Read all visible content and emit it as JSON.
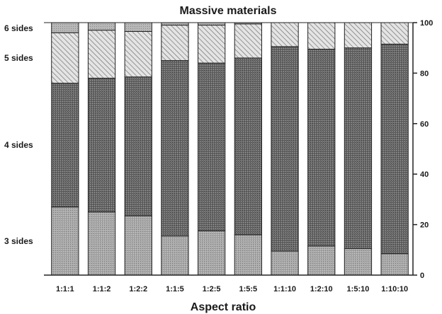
{
  "chart_data": {
    "type": "bar",
    "stacked": true,
    "title": "Massive materials",
    "xlabel": "Aspect ratio",
    "ylabel": "",
    "ylim": [
      0,
      100
    ],
    "yticks": [
      0,
      20,
      40,
      60,
      80,
      100
    ],
    "y_axis_side": "right",
    "categories": [
      "1:1:1",
      "1:1:2",
      "1:2:2",
      "1:1:5",
      "1:2:5",
      "1:5:5",
      "1:1:10",
      "1:2:10",
      "1:5:10",
      "1:10:10"
    ],
    "series": [
      {
        "name": "3 sides",
        "values": [
          27,
          25,
          23.5,
          15.5,
          17.5,
          16,
          9.5,
          11.5,
          10.5,
          8.5
        ]
      },
      {
        "name": "4 sides",
        "values": [
          49,
          53,
          55,
          69.5,
          66.5,
          70,
          81,
          78,
          79.5,
          83
        ]
      },
      {
        "name": "5 sides",
        "values": [
          20,
          19,
          18,
          14,
          15,
          13.5,
          9.5,
          10.5,
          10,
          8.5
        ]
      },
      {
        "name": "6 sides",
        "values": [
          4,
          3,
          3.5,
          1,
          1,
          0.5,
          0,
          0,
          0,
          0
        ]
      }
    ],
    "grid": false,
    "legend": "left side labels"
  }
}
